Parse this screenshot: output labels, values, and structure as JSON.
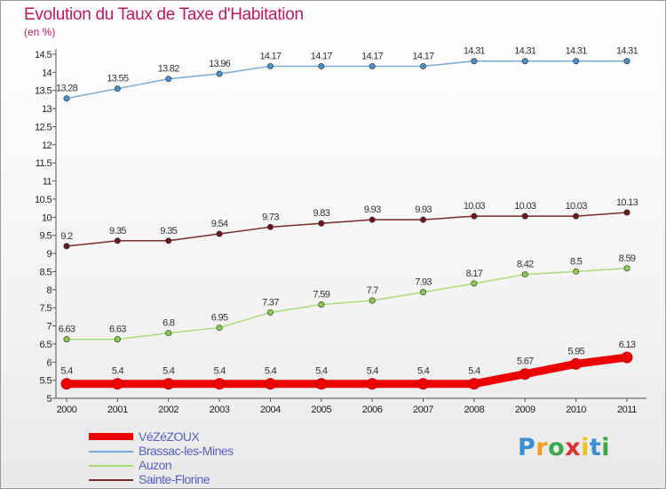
{
  "chart_data": {
    "type": "line",
    "title": "Evolution du Taux de Taxe d'Habitation",
    "subtitle": "(en %)",
    "x": [
      "2000",
      "2001",
      "2002",
      "2003",
      "2004",
      "2005",
      "2006",
      "2007",
      "2008",
      "2009",
      "2010",
      "2011"
    ],
    "ylim": [
      5,
      14.5
    ],
    "yticks": [
      "5",
      "5.5",
      "6",
      "6.5",
      "7",
      "7.5",
      "8",
      "8.5",
      "9",
      "9.5",
      "10",
      "10.5",
      "11",
      "11.5",
      "12",
      "12.5",
      "13",
      "13.5",
      "14",
      "14.5"
    ],
    "grid": false,
    "legend_position": "bottom-left",
    "series": [
      {
        "name": "VéZéZOUX",
        "color": "#ee0000",
        "thick": true,
        "values": [
          5.4,
          5.4,
          5.4,
          5.4,
          5.4,
          5.4,
          5.4,
          5.4,
          5.4,
          5.67,
          5.95,
          6.13
        ],
        "labels": [
          "5.4",
          "5.4",
          "5.4",
          "5.4",
          "5.4",
          "5.4",
          "5.4",
          "5.4",
          "5.4",
          "5.67",
          "5.95",
          "6.13"
        ]
      },
      {
        "name": "Brassac-les-Mines",
        "color": "#7aaad6",
        "marker_color": "#4a90c8",
        "thick": false,
        "values": [
          13.28,
          13.55,
          13.82,
          13.96,
          14.17,
          14.17,
          14.17,
          14.17,
          14.31,
          14.31,
          14.31,
          14.31
        ],
        "labels": [
          "13.28",
          "13.55",
          "13.82",
          "13.96",
          "14.17",
          "14.17",
          "14.17",
          "14.17",
          "14.31",
          "14.31",
          "14.31",
          "14.31"
        ]
      },
      {
        "name": "Auzon",
        "color": "#a8de78",
        "marker_color": "#86cc4a",
        "thick": false,
        "values": [
          6.63,
          6.63,
          6.8,
          6.95,
          7.37,
          7.59,
          7.7,
          7.93,
          8.17,
          8.42,
          8.5,
          8.59
        ],
        "labels": [
          "6.63",
          "6.63",
          "6.8",
          "6.95",
          "7.37",
          "7.59",
          "7.7",
          "7.93",
          "8.17",
          "8.42",
          "8.5",
          "8.59"
        ]
      },
      {
        "name": "Sainte-Florine",
        "color": "#7a2a2a",
        "marker_color": "#6a1a1a",
        "thick": false,
        "values": [
          9.2,
          9.35,
          9.35,
          9.54,
          9.73,
          9.83,
          9.93,
          9.93,
          10.03,
          10.03,
          10.03,
          10.13
        ],
        "labels": [
          "9.2",
          "9.35",
          "9.35",
          "9.54",
          "9.73",
          "9.83",
          "9.93",
          "9.93",
          "10.03",
          "10.03",
          "10.03",
          "10.13"
        ]
      }
    ]
  },
  "logo": {
    "letters": [
      "P",
      "r",
      "o",
      "x",
      "i",
      "t",
      "i"
    ],
    "colors": [
      "#3a8fd0",
      "#f0a020",
      "#3aa84a",
      "#e23030",
      "#f0c020",
      "#3a8fd0",
      "#3aa84a"
    ]
  }
}
